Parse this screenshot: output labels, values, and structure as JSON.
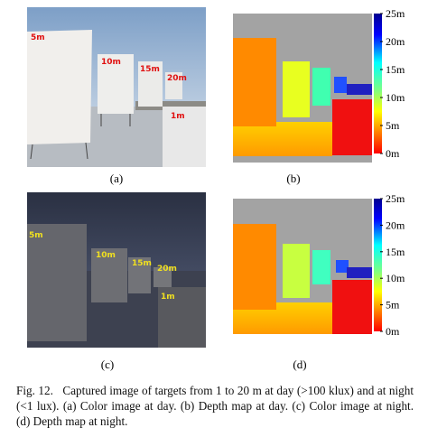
{
  "panels": [
    {
      "label": "(a)",
      "annotations": [
        "5m",
        "10m",
        "15m",
        "20m",
        "1m"
      ]
    },
    {
      "label": "(b)",
      "colorbar_ticks": [
        "25m",
        "20m",
        "15m",
        "10m",
        "5m",
        "0m"
      ]
    },
    {
      "label": "(c)",
      "annotations": [
        "5m",
        "10m",
        "15m",
        "20m",
        "1m"
      ]
    },
    {
      "label": "(d)",
      "colorbar_ticks": [
        "25m",
        "20m",
        "15m",
        "10m",
        "5m",
        "0m"
      ]
    }
  ],
  "figure_number": "Fig. 12.",
  "caption": "Captured image of targets from 1 to 20 m at day (>100 klux) and at night (<1 lux). (a) Color image at day. (b) Depth map at day. (c) Color image at night. (d) Depth map at night."
}
